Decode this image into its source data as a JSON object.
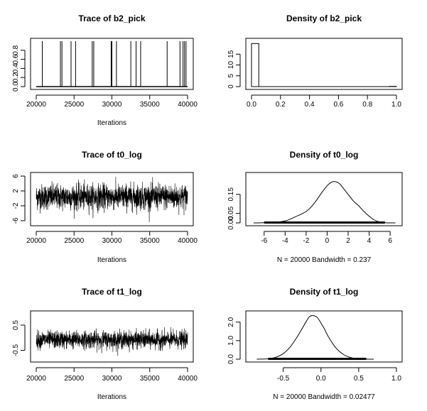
{
  "chart_data": [
    {
      "type": "line",
      "title": "Trace of b2_pick",
      "xlabel": "Iterations",
      "ylabel": "",
      "xlim": [
        20000,
        40000
      ],
      "ylim": [
        0,
        1
      ],
      "x_ticks": [
        20000,
        25000,
        30000,
        35000,
        40000
      ],
      "y_ticks": [
        0.0,
        0.2,
        0.4,
        0.6,
        0.8
      ],
      "x_tick_labels": [
        "20000",
        "25000",
        "30000",
        "35000",
        "40000"
      ],
      "y_tick_labels": [
        "0.0",
        "0.2",
        "0.4",
        "0.6",
        "0.8"
      ],
      "spikes_at": [
        20800,
        23200,
        23400,
        24600,
        25200,
        27400,
        27600,
        29900,
        30000,
        30600,
        32500,
        33200,
        33800,
        37300,
        39000,
        39400,
        39600,
        39800
      ],
      "spike_value": 1
    },
    {
      "type": "bar",
      "title": "Density of b2_pick",
      "xlabel": "",
      "ylabel": "",
      "xlim": [
        0,
        1
      ],
      "ylim": [
        0,
        21
      ],
      "x_ticks": [
        0.0,
        0.2,
        0.4,
        0.6,
        0.8,
        1.0
      ],
      "y_ticks": [
        0,
        5,
        10,
        15
      ],
      "x_tick_labels": [
        "0.0",
        "0.2",
        "0.4",
        "0.6",
        "0.8",
        "1.0"
      ],
      "y_tick_labels": [
        "0",
        "5",
        "10",
        "15"
      ],
      "bins": [
        [
          0,
          0.05,
          19.9
        ],
        [
          0.95,
          1.0,
          0.1
        ]
      ]
    },
    {
      "type": "line",
      "title": "Trace of t0_log",
      "xlabel": "Iterations",
      "ylabel": "",
      "xlim": [
        20000,
        40000
      ],
      "ylim": [
        -6.6,
        6.2
      ],
      "x_ticks": [
        20000,
        25000,
        30000,
        35000,
        40000
      ],
      "y_ticks": [
        -6,
        -2,
        2,
        6
      ],
      "x_tick_labels": [
        "20000",
        "25000",
        "30000",
        "35000",
        "40000"
      ],
      "y_tick_labels": [
        "-6",
        "-2",
        "2",
        "6"
      ],
      "series_mean": 0.4,
      "series_sd": 1.7,
      "series_min": -6.4,
      "series_max": 5.8
    },
    {
      "type": "line",
      "title": "Density of t0_log",
      "xlabel": "N = 20000   Bandwidth = 0.237",
      "ylabel": "",
      "xlim": [
        -7.2,
        6.6
      ],
      "ylim": [
        0,
        0.25
      ],
      "x_ticks": [
        -6,
        -4,
        -2,
        0,
        2,
        4,
        6
      ],
      "y_ticks": [
        0.0,
        0.05,
        0.15
      ],
      "x_tick_labels": [
        "-6",
        "-4",
        "-2",
        "0",
        "2",
        "4",
        "6"
      ],
      "y_tick_labels": [
        "0.00",
        "0.05",
        "0.15"
      ],
      "x": [
        -7,
        -6,
        -5,
        -4,
        -3.5,
        -3,
        -2.5,
        -2,
        -1.5,
        -1,
        -0.5,
        0,
        0.3,
        0.6,
        0.9,
        1.2,
        1.5,
        2,
        2.5,
        3,
        3.5,
        4,
        4.5,
        5,
        5.5,
        6.5
      ],
      "y": [
        0,
        0.001,
        0.003,
        0.01,
        0.02,
        0.033,
        0.045,
        0.06,
        0.085,
        0.12,
        0.16,
        0.195,
        0.21,
        0.217,
        0.215,
        0.205,
        0.185,
        0.15,
        0.115,
        0.09,
        0.06,
        0.035,
        0.015,
        0.005,
        0.001,
        0
      ]
    },
    {
      "type": "line",
      "title": "Trace of t1_log",
      "xlabel": "Iterations",
      "ylabel": "",
      "xlim": [
        20000,
        40000
      ],
      "ylim": [
        -0.85,
        0.95
      ],
      "x_ticks": [
        20000,
        25000,
        30000,
        35000,
        40000
      ],
      "y_ticks": [
        -0.5,
        0.5
      ],
      "x_tick_labels": [
        "20000",
        "25000",
        "30000",
        "35000",
        "40000"
      ],
      "y_tick_labels": [
        "-0.5",
        "0.5"
      ],
      "series_mean": -0.08,
      "series_sd": 0.17,
      "series_min": -0.78,
      "series_max": 0.9
    },
    {
      "type": "line",
      "title": "Density of t1_log",
      "xlabel": "N = 20000   Bandwidth = 0.02477",
      "ylabel": "",
      "xlim": [
        -0.92,
        1.0
      ],
      "ylim": [
        0,
        2.45
      ],
      "x_ticks": [
        -0.5,
        0.0,
        0.5,
        1.0
      ],
      "y_ticks": [
        0.0,
        1.0,
        2.0
      ],
      "x_tick_labels": [
        "-0.5",
        "0.0",
        "0.5",
        "1.0"
      ],
      "y_tick_labels": [
        "0.0",
        "1.0",
        "2.0"
      ],
      "x": [
        -0.85,
        -0.7,
        -0.6,
        -0.5,
        -0.4,
        -0.3,
        -0.2,
        -0.15,
        -0.1,
        -0.05,
        0.0,
        0.05,
        0.1,
        0.2,
        0.3,
        0.4,
        0.5,
        0.6,
        0.7
      ],
      "y": [
        0,
        0.02,
        0.1,
        0.3,
        0.7,
        1.3,
        2.0,
        2.3,
        2.35,
        2.25,
        1.95,
        1.6,
        1.2,
        0.6,
        0.25,
        0.08,
        0.02,
        0.005,
        0
      ]
    }
  ]
}
